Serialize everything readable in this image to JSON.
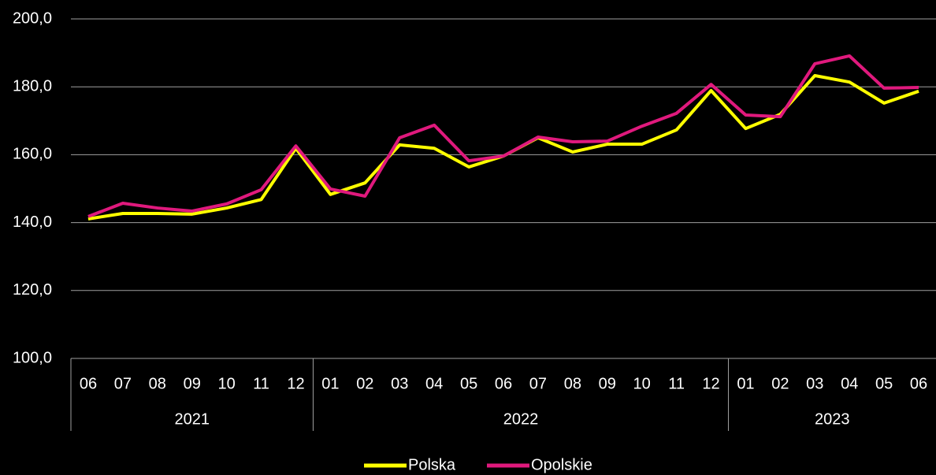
{
  "chart_data": {
    "type": "line",
    "groups": [
      {
        "name": "2021",
        "categories": [
          "06",
          "07",
          "08",
          "09",
          "10",
          "11",
          "12"
        ]
      },
      {
        "name": "2022",
        "categories": [
          "01",
          "02",
          "03",
          "04",
          "05",
          "06",
          "07",
          "08",
          "09",
          "10",
          "11",
          "12"
        ]
      },
      {
        "name": "2023",
        "categories": [
          "01",
          "02",
          "03",
          "04",
          "05",
          "06"
        ]
      }
    ],
    "series": [
      {
        "name": "Polska",
        "color": "#ffff00",
        "values": [
          141.1,
          142.7,
          142.7,
          142.5,
          144.3,
          146.8,
          161.9,
          148.3,
          151.7,
          162.9,
          161.9,
          156.4,
          159.6,
          165.0,
          160.8,
          163.1,
          163.1,
          167.3,
          178.9,
          167.7,
          171.9,
          183.3,
          181.4,
          175.2,
          178.7
        ]
      },
      {
        "name": "Opolskie",
        "color": "#e0197d",
        "values": [
          141.8,
          145.7,
          144.3,
          143.4,
          145.5,
          149.7,
          162.6,
          149.9,
          147.8,
          165.0,
          168.7,
          158.2,
          159.6,
          165.2,
          163.8,
          164.0,
          168.4,
          172.2,
          180.7,
          171.7,
          171.2,
          186.8,
          189.1,
          179.6,
          179.8
        ]
      }
    ],
    "ylim": [
      100,
      200
    ],
    "yticks": [
      {
        "value": 100,
        "label": "100,0"
      },
      {
        "value": 120,
        "label": "120,0"
      },
      {
        "value": 140,
        "label": "140,0"
      },
      {
        "value": 160,
        "label": "160,0"
      },
      {
        "value": 180,
        "label": "180,0"
      },
      {
        "value": 200,
        "label": "200,0"
      }
    ],
    "grid": true,
    "legend": "bottom"
  }
}
